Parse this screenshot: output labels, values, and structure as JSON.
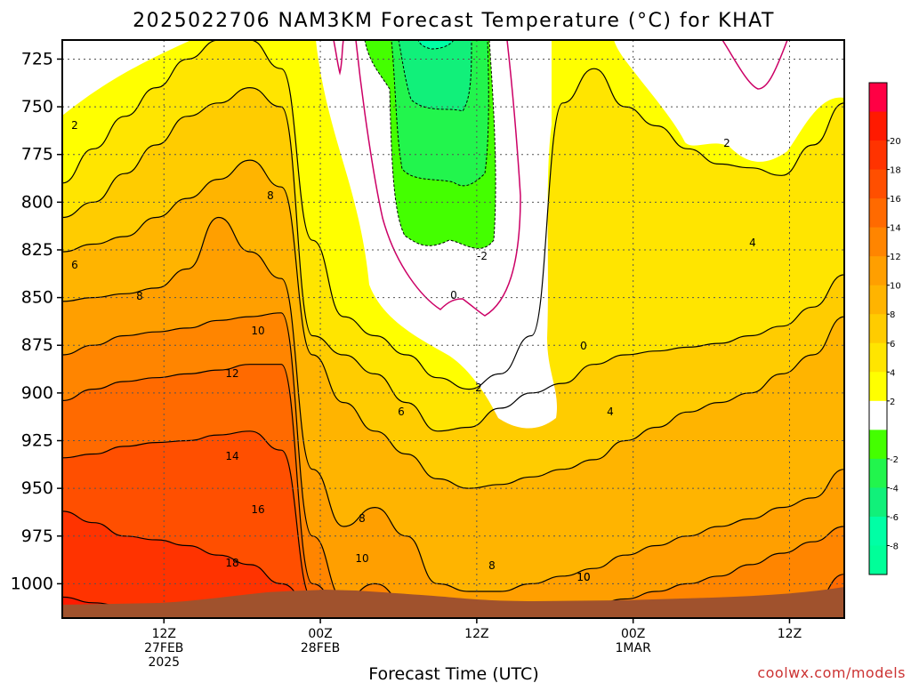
{
  "chart_data": {
    "type": "contour",
    "title": "2025022706 NAM3KM Forecast Temperature (°C) for KHAT",
    "xlabel": "Forecast Time (UTC)",
    "ylabel": "",
    "credit": "coolwx.com/models",
    "y_axis": {
      "unit": "hPa",
      "inverted": true,
      "range": [
        715,
        1018
      ],
      "ticks": [
        "725",
        "750",
        "775",
        "800",
        "825",
        "850",
        "875",
        "900",
        "925",
        "950",
        "975",
        "1000"
      ]
    },
    "x_axis": {
      "range_hours": [
        -6.5,
        43.5
      ],
      "ticks": [
        {
          "hour": 0,
          "line1": "12Z",
          "line2": "27FEB",
          "line3": "2025"
        },
        {
          "hour": 10,
          "line1": "00Z",
          "line2": "28FEB",
          "line3": ""
        },
        {
          "hour": 20,
          "line1": "12Z",
          "line2": "",
          "line3": ""
        },
        {
          "hour": 30,
          "line1": "00Z",
          "line2": "1MAR",
          "line3": ""
        },
        {
          "hour": 40,
          "line1": "12Z",
          "line2": "",
          "line3": ""
        }
      ]
    },
    "grid": true,
    "colorbar": {
      "placement": "right",
      "levels": [
        {
          "label": "",
          "color": "#ff0044"
        },
        {
          "label": "20",
          "color": "#ff1a00"
        },
        {
          "label": "18",
          "color": "#ff3300"
        },
        {
          "label": "16",
          "color": "#ff4f00"
        },
        {
          "label": "14",
          "color": "#ff6a00"
        },
        {
          "label": "12",
          "color": "#ff8500"
        },
        {
          "label": "10",
          "color": "#ff9f00"
        },
        {
          "label": "8",
          "color": "#ffb400"
        },
        {
          "label": "6",
          "color": "#ffcc00"
        },
        {
          "label": "4",
          "color": "#ffe500"
        },
        {
          "label": "2",
          "color": "#ffff00"
        },
        {
          "label": "",
          "color": "#ffffff"
        },
        {
          "label": "-2",
          "color": "#44ff00"
        },
        {
          "label": "-4",
          "color": "#22f54d"
        },
        {
          "label": "-6",
          "color": "#11f07a"
        },
        {
          "label": "-8",
          "color": "#00ffa5"
        },
        {
          "label": "",
          "color": "#00ff99"
        }
      ]
    },
    "contour_labels": [
      "2",
      "6",
      "8",
      "8",
      "10",
      "12",
      "14",
      "16",
      "18",
      "8",
      "10",
      "6",
      "8",
      "10",
      "2",
      "0",
      "-2",
      "0",
      "4",
      "4",
      "2",
      "10"
    ],
    "isotherm_levels": [
      {
        "value": 18,
        "p": [
          1007,
          1010,
          1012,
          1012,
          1013,
          1014,
          1015,
          1016,
          1017,
          1017,
          1017,
          1017,
          1017,
          1017,
          1017,
          1017,
          1017,
          1017,
          1017,
          1017,
          1017,
          1017,
          1017,
          1017,
          1017,
          1017
        ]
      },
      {
        "value": 16,
        "p": [
          962,
          968,
          975,
          977,
          980,
          985,
          990,
          1000,
          1012,
          1017,
          1017,
          1017,
          1017,
          1017,
          1017,
          1017,
          1017,
          1017,
          1017,
          1017,
          1017,
          1017,
          1017,
          1017,
          1017,
          1017
        ]
      },
      {
        "value": 14,
        "p": [
          934,
          932,
          928,
          926,
          925,
          922,
          920,
          930,
          1008,
          1016,
          1017,
          1017,
          1017,
          1017,
          1017,
          1017,
          1017,
          1017,
          1017,
          1017,
          1017,
          1017,
          1017,
          1017,
          1017,
          1014
        ]
      },
      {
        "value": 12,
        "p": [
          904,
          898,
          894,
          892,
          890,
          888,
          885,
          885,
          1000,
          1015,
          1017,
          1017,
          1017,
          1017,
          1017,
          1017,
          1017,
          1017,
          1017,
          1017,
          1017,
          1017,
          1017,
          1017,
          1010,
          995
        ]
      },
      {
        "value": 10,
        "p": [
          880,
          875,
          870,
          868,
          866,
          862,
          860,
          858,
          975,
          1008,
          1000,
          1010,
          1014,
          1014,
          1014,
          1014,
          1013,
          1011,
          1008,
          1004,
          1000,
          996,
          990,
          984,
          978,
          970
        ]
      },
      {
        "value": 8,
        "p": [
          852,
          850,
          848,
          845,
          835,
          808,
          826,
          840,
          940,
          970,
          960,
          975,
          1000,
          1004,
          1004,
          1000,
          996,
          992,
          985,
          980,
          975,
          970,
          966,
          960,
          955,
          940
        ]
      },
      {
        "value": 6,
        "p": [
          826,
          822,
          818,
          808,
          798,
          788,
          778,
          792,
          880,
          905,
          920,
          932,
          945,
          950,
          948,
          944,
          940,
          935,
          925,
          918,
          910,
          905,
          900,
          890,
          880,
          860
        ]
      },
      {
        "value": 4,
        "p": [
          808,
          800,
          785,
          770,
          755,
          748,
          740,
          750,
          870,
          880,
          890,
          905,
          920,
          918,
          908,
          900,
          895,
          885,
          880,
          878,
          876,
          874,
          870,
          865,
          855,
          838
        ]
      },
      {
        "value": 2,
        "p": [
          790,
          772,
          755,
          740,
          725,
          715,
          715,
          730,
          820,
          860,
          870,
          880,
          892,
          898,
          890,
          870,
          748,
          730,
          750,
          760,
          772,
          780,
          782,
          786,
          770,
          748
        ]
      }
    ],
    "zero_line": {
      "value": 0,
      "p": [
        785,
        810,
        835,
        845,
        840,
        820,
        790,
        760
      ]
    },
    "cold_core": {
      "value": -2,
      "p": [
        720,
        800,
        815,
        820,
        805,
        720
      ]
    }
  }
}
